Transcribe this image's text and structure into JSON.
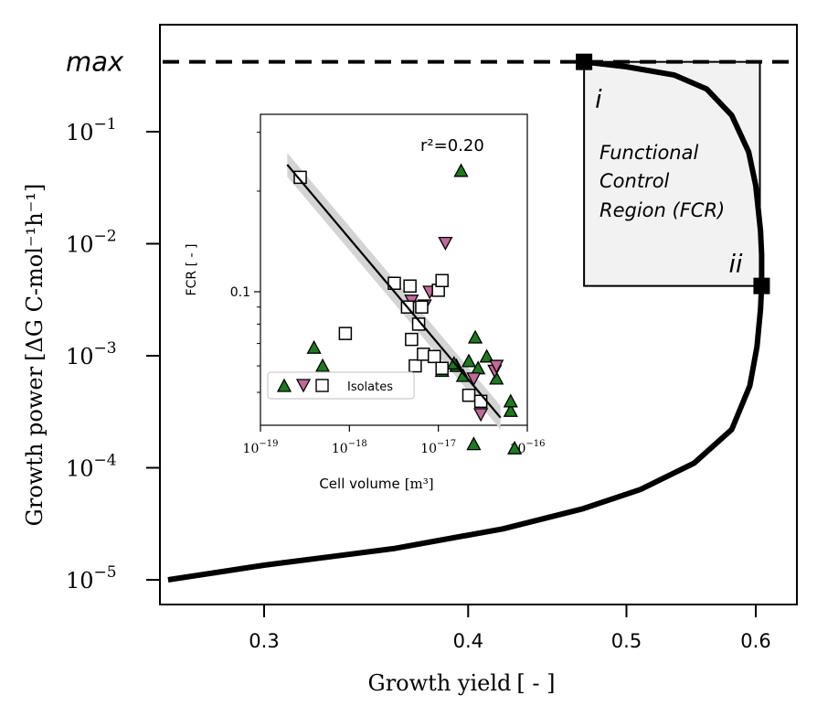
{
  "chart_data": [
    {
      "type": "line",
      "xlabel": "Growth yield",
      "xunit": "[ - ]",
      "ylabel": "Growth power",
      "yunit": "[ΔG C-mol⁻¹h⁻¹]",
      "xscale": "log",
      "yscale": "log",
      "xticks": [
        0.3,
        0.4,
        0.5,
        0.6
      ],
      "xtick_labels": [
        "0.3",
        "0.4",
        "0.5",
        "0.6"
      ],
      "yticks": [
        1e-05,
        0.0001,
        0.001,
        0.01,
        0.1
      ],
      "ytick_labels": [
        {
          "base": "10",
          "exp": "−5"
        },
        {
          "base": "10",
          "exp": "−4"
        },
        {
          "base": "10",
          "exp": "−3"
        },
        {
          "base": "10",
          "exp": "−2"
        },
        {
          "base": "10",
          "exp": "−1"
        }
      ],
      "max_label": "max",
      "series": [
        {
          "points": [
            [
              0.262,
              1e-05
            ],
            [
              0.3,
              1.35e-05
            ],
            [
              0.36,
              1.9e-05
            ],
            [
              0.42,
              2.85e-05
            ],
            [
              0.47,
              4.3e-05
            ],
            [
              0.51,
              6.4e-05
            ],
            [
              0.55,
              0.00011
            ],
            [
              0.58,
              0.00022
            ],
            [
              0.595,
              0.00054
            ],
            [
              0.601,
              0.0012
            ],
            [
              0.604,
              0.0026
            ],
            [
              0.605,
              0.0042
            ],
            [
              0.605,
              0.008
            ],
            [
              0.604,
              0.013
            ],
            [
              0.6,
              0.033
            ],
            [
              0.594,
              0.066
            ],
            [
              0.58,
              0.14
            ],
            [
              0.56,
              0.24
            ],
            [
              0.535,
              0.32
            ],
            [
              0.5,
              0.38
            ],
            [
              0.471,
              0.42
            ]
          ]
        }
      ],
      "markers": [
        {
          "label": "i",
          "x": 0.471,
          "y": 0.42
        },
        {
          "label": "ii",
          "x": 0.605,
          "y": 0.0042
        }
      ],
      "region": {
        "label": "Functional Control Region (FCR)",
        "x0": 0.471,
        "x1": 0.605,
        "y0": 0.0042,
        "y1": 0.42
      }
    },
    {
      "type": "scatter",
      "xlabel": "Cell volume",
      "xunit": "[m³]",
      "ylabel": "FCR [ - ]",
      "xscale": "log",
      "yscale": "log",
      "xlim": [
        1e-19,
        1e-16
      ],
      "xticks": [
        1e-19,
        1e-18,
        1e-17,
        1e-16
      ],
      "xtick_labels": [
        {
          "base": "10",
          "exp": "−19"
        },
        {
          "base": "10",
          "exp": "−18"
        },
        {
          "base": "10",
          "exp": "−17"
        },
        {
          "base": "10",
          "exp": "−16"
        }
      ],
      "yticks": [
        0.1
      ],
      "ytick_labels": [
        "0.1"
      ],
      "annotation": "r²=0.20",
      "legend": {
        "label": "Isolates",
        "position": "lower-left"
      },
      "fit": {
        "x": [
          2e-19,
          5e-17
        ],
        "y": [
          0.24,
          0.042
        ]
      },
      "series": [
        {
          "marker": "triangle-up",
          "color": "#1e7a1e",
          "points": [
            [
              1.8e-17,
              0.23
            ],
            [
              1.1e-17,
              0.058
            ],
            [
              1.6e-17,
              0.06
            ],
            [
              2.6e-17,
              0.073
            ],
            [
              2.2e-17,
              0.062
            ],
            [
              2.8e-17,
              0.059
            ],
            [
              3.5e-17,
              0.064
            ],
            [
              4.5e-17,
              0.055
            ],
            [
              6.5e-17,
              0.044
            ],
            [
              7.2e-17,
              0.034
            ],
            [
              2.5e-17,
              0.035
            ],
            [
              6.5e-17,
              0.047
            ],
            [
              4e-19,
              0.068
            ],
            [
              5e-19,
              0.06
            ],
            [
              1.5e-17,
              0.061
            ],
            [
              1.9e-17,
              0.056
            ]
          ]
        },
        {
          "marker": "triangle-down",
          "color": "#c06a96",
          "points": [
            [
              1.2e-17,
              0.14
            ],
            [
              8e-18,
              0.1
            ],
            [
              2.5e-17,
              0.055
            ],
            [
              4.3e-17,
              0.058
            ],
            [
              3e-17,
              0.043
            ],
            [
              4.5e-17,
              0.06
            ],
            [
              5e-18,
              0.094
            ],
            [
              7e-18,
              0.091
            ]
          ]
        },
        {
          "marker": "square",
          "color": "#ffffff",
          "points": [
            [
              2.8e-19,
              0.22
            ],
            [
              9e-19,
              0.075
            ],
            [
              3.2e-18,
              0.106
            ],
            [
              4.5e-18,
              0.09
            ],
            [
              4.8e-18,
              0.104
            ],
            [
              5.5e-18,
              0.06
            ],
            [
              6e-18,
              0.08
            ],
            [
              6.5e-18,
              0.09
            ],
            [
              6.8e-18,
              0.065
            ],
            [
              1e-17,
              0.101
            ],
            [
              1.1e-17,
              0.108
            ],
            [
              9e-18,
              0.064
            ],
            [
              2.2e-17,
              0.049
            ],
            [
              3e-17,
              0.047
            ],
            [
              1.1e-17,
              0.059
            ],
            [
              5e-18,
              0.072
            ]
          ]
        }
      ]
    }
  ]
}
